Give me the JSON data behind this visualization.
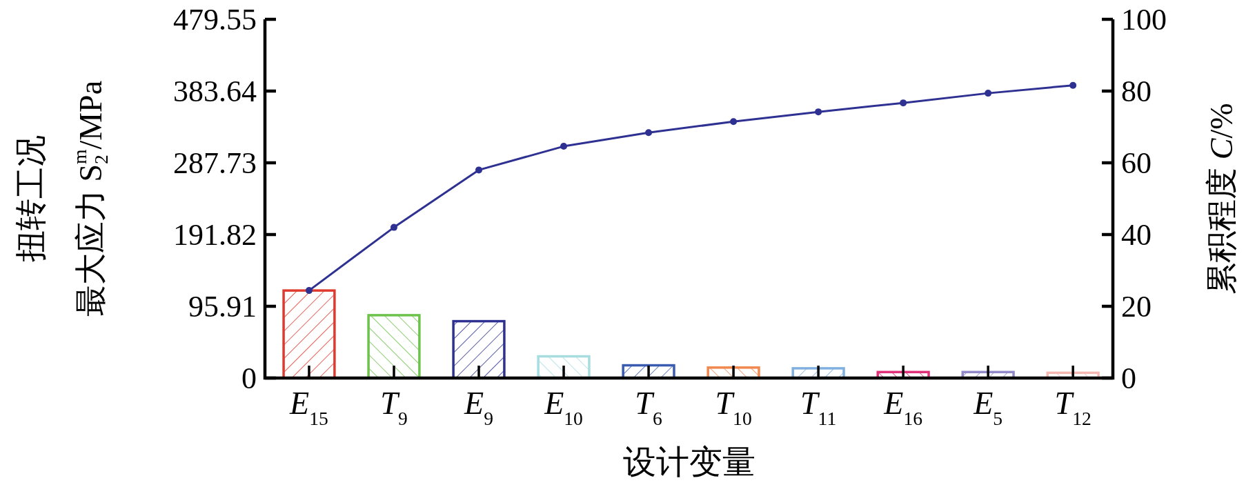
{
  "chart_data": {
    "type": "bar",
    "xlabel": "设计变量",
    "ylabel": "扭转工况最大应力 S$_{2}$$^{m}$/MPa",
    "y2label": "累积程度 *C*/%",
    "categories": [
      "*E*$_{15}$",
      "*T*$_{9}$",
      "*E*$_{9}$",
      "*E*$_{10}$",
      "*T*$_{6}$",
      "*T*$_{10}$",
      "*T*$_{11}$",
      "*E*$_{16}$",
      "*E*$_{5}$",
      "*T*$_{12}$"
    ],
    "ylim": [
      0,
      479.55
    ],
    "yticks": [
      0,
      95.91,
      191.82,
      287.73,
      383.64,
      479.55
    ],
    "y2lim": [
      0,
      100
    ],
    "y2ticks": [
      0,
      20,
      40,
      60,
      80,
      100
    ],
    "series": [
      {
        "colors": [
          "#e03a2e",
          "#6cc24a",
          "#2e3192",
          "#a8dde0",
          "#3a5cb0",
          "#f08850",
          "#80b0e0",
          "#e0307a",
          "#9088c8",
          "#f4b8b0"
        ],
        "values": [
          117,
          84,
          76,
          29,
          17,
          14,
          13,
          8,
          8,
          7
        ]
      },
      {
        "type": "line",
        "axis": "y2",
        "color": "#2e3192",
        "marker": "circle",
        "values": [
          24.4,
          42,
          58,
          64.6,
          68.4,
          71.5,
          74.2,
          76.7,
          79.4,
          81.6
        ]
      }
    ]
  }
}
